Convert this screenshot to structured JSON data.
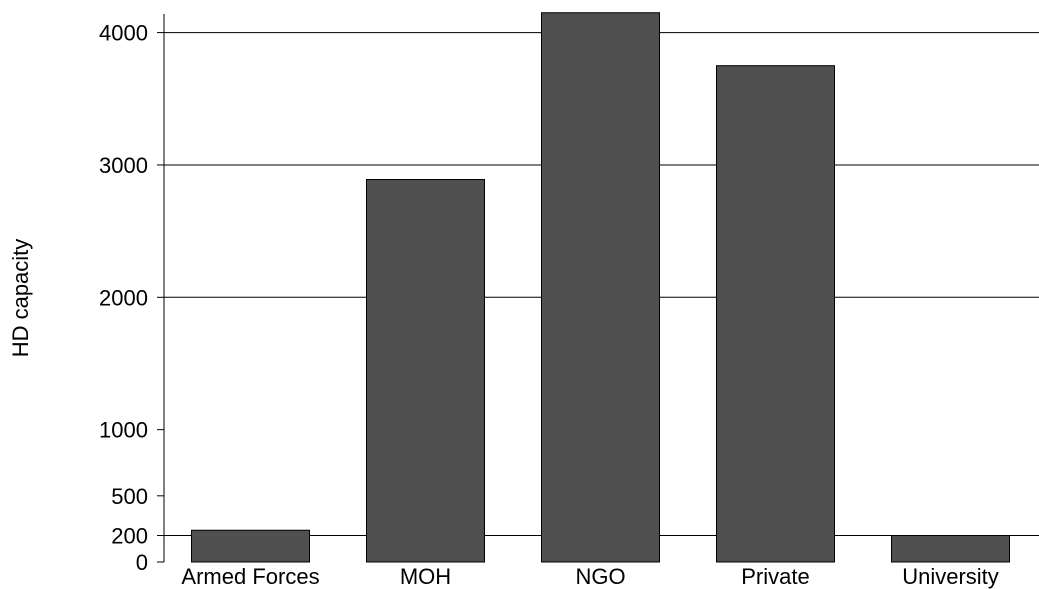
{
  "chart_data": {
    "type": "bar",
    "title": "",
    "xlabel": "",
    "ylabel": "HD capacity",
    "categories": [
      "Armed Forces",
      "MOH",
      "NGO",
      "Private",
      "University"
    ],
    "values": [
      240,
      2890,
      4150,
      3750,
      200
    ],
    "ylim": [
      0,
      4150
    ],
    "yticks": [
      0,
      200,
      500,
      1000,
      2000,
      3000,
      4000
    ],
    "gridlines": [
      200,
      2000,
      3000,
      4000
    ],
    "grid": true,
    "legend": "none",
    "bar_color": "#505050",
    "bar_edge_color": "#000000"
  }
}
